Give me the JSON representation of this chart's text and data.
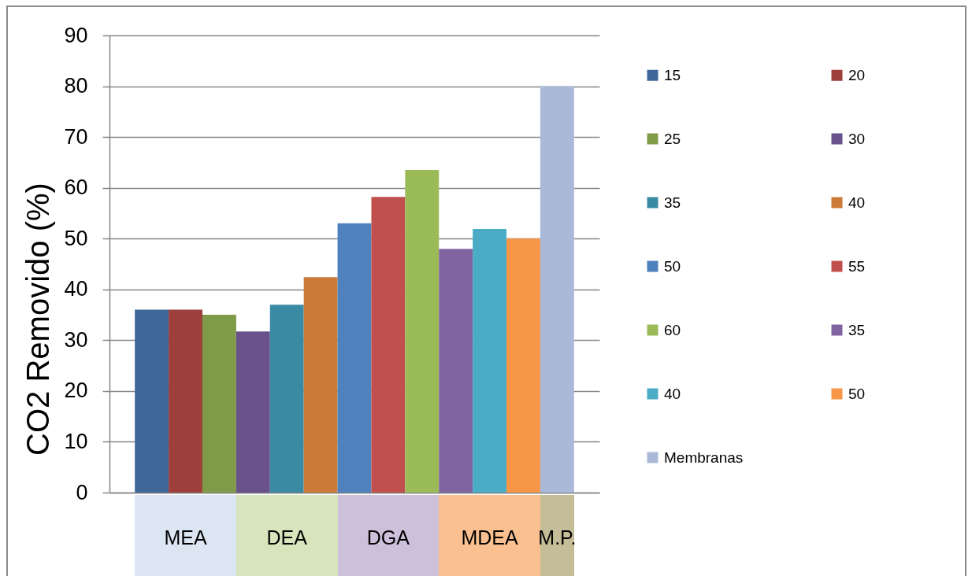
{
  "chart_data": {
    "type": "bar",
    "ylabel": "CO2 Removido (%)",
    "categories": [
      null,
      "MEA",
      null,
      null,
      "DEA",
      null,
      null,
      "DGA",
      null,
      null,
      "MDEA",
      null,
      "M.P."
    ],
    "series": [
      {
        "name": "15",
        "color": "#3f6899",
        "values": [
          36,
          null,
          null,
          null,
          null,
          null,
          null,
          null,
          null,
          null,
          null,
          null,
          null
        ]
      },
      {
        "name": "20",
        "color": "#9e3f3c",
        "values": [
          null,
          36,
          null,
          null,
          null,
          null,
          null,
          null,
          null,
          null,
          null,
          null,
          null
        ]
      },
      {
        "name": "25",
        "color": "#7f9a48",
        "values": [
          null,
          null,
          35,
          null,
          null,
          null,
          null,
          null,
          null,
          null,
          null,
          null,
          null
        ]
      },
      {
        "name": "30",
        "color": "#69518a",
        "values": [
          null,
          null,
          null,
          31.7,
          null,
          null,
          null,
          null,
          null,
          null,
          null,
          null,
          null
        ]
      },
      {
        "name": "35",
        "color": "#3b8aa3",
        "values": [
          null,
          null,
          null,
          null,
          37,
          null,
          null,
          null,
          null,
          null,
          null,
          null,
          null
        ]
      },
      {
        "name": "40",
        "color": "#cb7a37",
        "values": [
          null,
          null,
          null,
          null,
          null,
          42.4,
          null,
          null,
          null,
          null,
          null,
          null,
          null
        ]
      },
      {
        "name": "50",
        "color": "#4f81bd",
        "values": [
          null,
          null,
          null,
          null,
          null,
          null,
          53,
          null,
          null,
          null,
          null,
          null,
          null
        ]
      },
      {
        "name": "55",
        "color": "#c0504d",
        "values": [
          null,
          null,
          null,
          null,
          null,
          null,
          null,
          58.2,
          null,
          null,
          null,
          null,
          null
        ]
      },
      {
        "name": "60",
        "color": "#9bbb59",
        "values": [
          null,
          null,
          null,
          null,
          null,
          null,
          null,
          null,
          63.5,
          null,
          null,
          null,
          null
        ]
      },
      {
        "name": "35",
        "color": "#8064a2",
        "values": [
          null,
          null,
          null,
          null,
          null,
          null,
          null,
          null,
          null,
          48,
          null,
          null,
          null
        ]
      },
      {
        "name": "40",
        "color": "#4bacc6",
        "values": [
          null,
          null,
          null,
          null,
          null,
          null,
          null,
          null,
          null,
          null,
          51.9,
          null,
          null
        ]
      },
      {
        "name": "50",
        "color": "#f79646",
        "values": [
          null,
          null,
          null,
          null,
          null,
          null,
          null,
          null,
          null,
          null,
          null,
          50,
          null
        ]
      },
      {
        "name": "Membranas",
        "color": "#aab9d7",
        "values": [
          null,
          null,
          null,
          null,
          null,
          null,
          null,
          null,
          null,
          null,
          null,
          null,
          80
        ]
      }
    ],
    "ylim": [
      0,
      90
    ],
    "yticks": [
      0,
      10,
      20,
      30,
      40,
      50,
      60,
      70,
      80,
      90
    ],
    "grid": "y",
    "legend": "right"
  }
}
